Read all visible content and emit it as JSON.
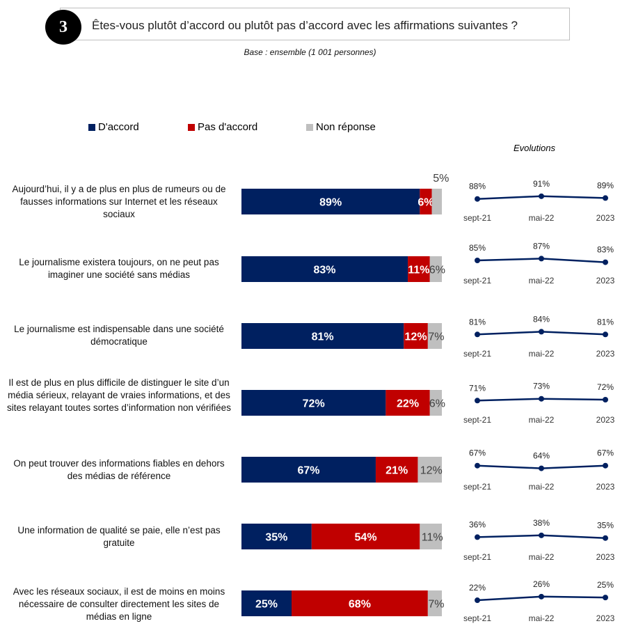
{
  "header": {
    "number": "3",
    "title": "Êtes-vous plutôt d’accord ou plutôt pas d’accord avec les affirmations suivantes ?",
    "base_note": "Base : ensemble (1 001 personnes)"
  },
  "colors": {
    "accord": "#002060",
    "pas_accord": "#c00000",
    "non_reponse": "#bfbfbf",
    "line": "#002060"
  },
  "legend": [
    {
      "label": "D'accord",
      "color": "#002060"
    },
    {
      "label": "Pas d'accord",
      "color": "#c00000"
    },
    {
      "label": "Non réponse",
      "color": "#bfbfbf"
    }
  ],
  "evolutions_title": "Evolutions",
  "chart_data": {
    "type": "bar",
    "orientation": "horizontal-stacked-100",
    "series_names": [
      "D'accord",
      "Pas d'accord",
      "Non réponse"
    ],
    "categories": [
      "Aujourd’hui, il y a de plus en plus de rumeurs ou de fausses informations sur Internet et les réseaux sociaux",
      "Le journalisme existera toujours, on ne peut pas imaginer une société sans médias",
      "Le journalisme est indispensable dans une société démocratique",
      "Il est de plus en plus difficile de distinguer le site d’un média sérieux, relayant de vraies informations, et des sites relayant toutes sortes d’information non vérifiées",
      "On peut trouver des informations fiables en dehors des médias de référence",
      "Une information de qualité se paie, elle n’est pas gratuite",
      "Avec les réseaux sociaux, il est de moins en moins nécessaire de consulter directement les sites de médias en ligne"
    ],
    "series": [
      {
        "name": "D'accord",
        "values": [
          89,
          83,
          81,
          72,
          67,
          35,
          25
        ]
      },
      {
        "name": "Pas d'accord",
        "values": [
          6,
          11,
          12,
          22,
          21,
          54,
          68
        ]
      },
      {
        "name": "Non réponse",
        "values": [
          5,
          6,
          7,
          6,
          12,
          11,
          7
        ]
      }
    ],
    "value_suffix": "%",
    "xlim": [
      0,
      100
    ],
    "legend_position": "top",
    "evolutions": {
      "type": "line",
      "x": [
        "sept-21",
        "mai-22",
        "2023"
      ],
      "series": [
        {
          "values": [
            88,
            91,
            89
          ]
        },
        {
          "values": [
            85,
            87,
            83
          ]
        },
        {
          "values": [
            81,
            84,
            81
          ]
        },
        {
          "values": [
            71,
            73,
            72
          ]
        },
        {
          "values": [
            67,
            64,
            67
          ]
        },
        {
          "values": [
            36,
            38,
            35
          ]
        },
        {
          "values": [
            22,
            26,
            25
          ]
        }
      ]
    }
  }
}
